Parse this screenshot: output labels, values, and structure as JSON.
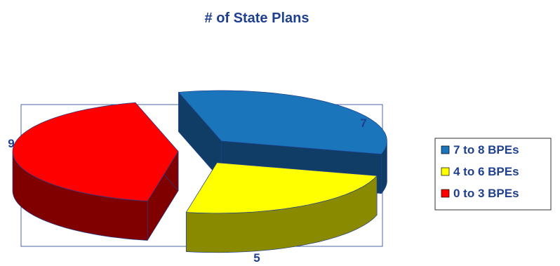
{
  "chart_data": {
    "type": "pie",
    "title": "# of State Plans",
    "categories": [
      "7 to 8 BPEs",
      "4 to 6 BPEs",
      "0 to 3 BPEs"
    ],
    "values": [
      7,
      5,
      9
    ],
    "colors": {
      "7 to 8 BPEs": "#1b75bb",
      "4 to 6 BPEs": "#ffff00",
      "0 to 3 BPEs": "#ff0000"
    },
    "side_colors": {
      "7 to 8 BPEs": "#0f3d66",
      "4 to 6 BPEs": "#8a8a00",
      "0 to 3 BPEs": "#800000"
    },
    "style": "3d exploded pie",
    "legend": "right"
  }
}
